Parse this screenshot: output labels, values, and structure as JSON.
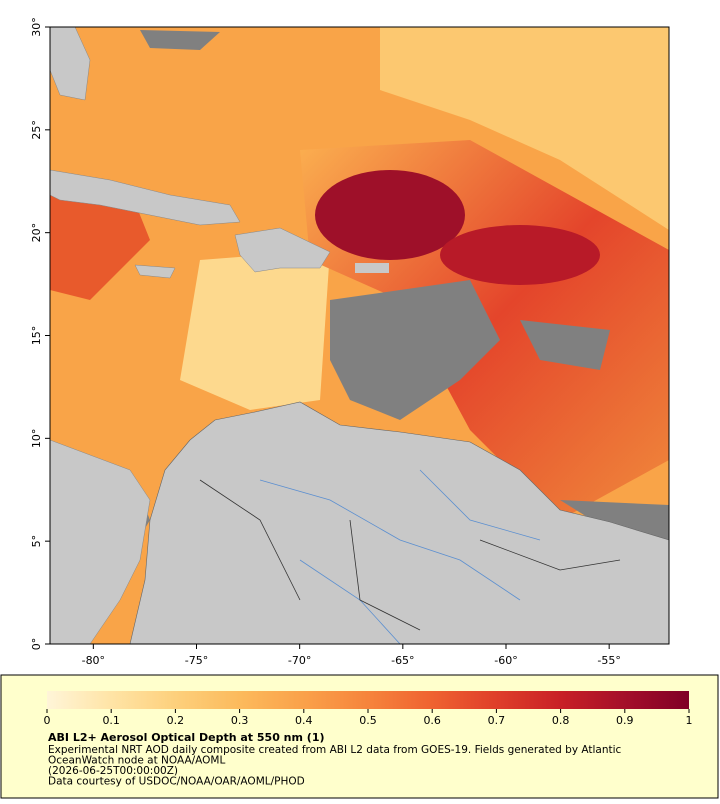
{
  "map": {
    "lonlim": [
      -82.1,
      -52.1
    ],
    "latlim": [
      0,
      30
    ],
    "lat_ticks": [
      {
        "value": 0,
        "label": "0°"
      },
      {
        "value": 5,
        "label": "5°"
      },
      {
        "value": 10,
        "label": "10°"
      },
      {
        "value": 15,
        "label": "15°"
      },
      {
        "value": 20,
        "label": "20°"
      },
      {
        "value": 25,
        "label": "25°"
      },
      {
        "value": 30,
        "label": "30°"
      }
    ],
    "lon_ticks": [
      {
        "value": -80,
        "label": "-80°"
      },
      {
        "value": -75,
        "label": "-75°"
      },
      {
        "value": -70,
        "label": "-70°"
      },
      {
        "value": -65,
        "label": "-65°"
      },
      {
        "value": -60,
        "label": "-60°"
      },
      {
        "value": -55,
        "label": "-55°"
      }
    ]
  },
  "colorbar": {
    "ticks": [
      0,
      0.1,
      0.2,
      0.3,
      0.4,
      0.5,
      0.6,
      0.7,
      0.8,
      0.9,
      1
    ],
    "colors": [
      "#fff5d8",
      "#ffe4a6",
      "#fdd07c",
      "#fcba5c",
      "#faa14a",
      "#f6843c",
      "#ef6230",
      "#df3f2a",
      "#c82026",
      "#a40f2a",
      "#800026"
    ]
  },
  "footer": {
    "title": "ABI L2+ Aerosol Optical Depth at 550 nm (1)",
    "lines": [
      "Experimental NRT AOD daily composite created from ABI L2 data from GOES-19. Fields generated by Atlantic",
      "OceanWatch node at NOAA/AOML",
      "(2026-06-25T00:00:00Z)",
      "Data courtesy of USDOC/NOAA/OAR/AOML/PHOD"
    ]
  }
}
